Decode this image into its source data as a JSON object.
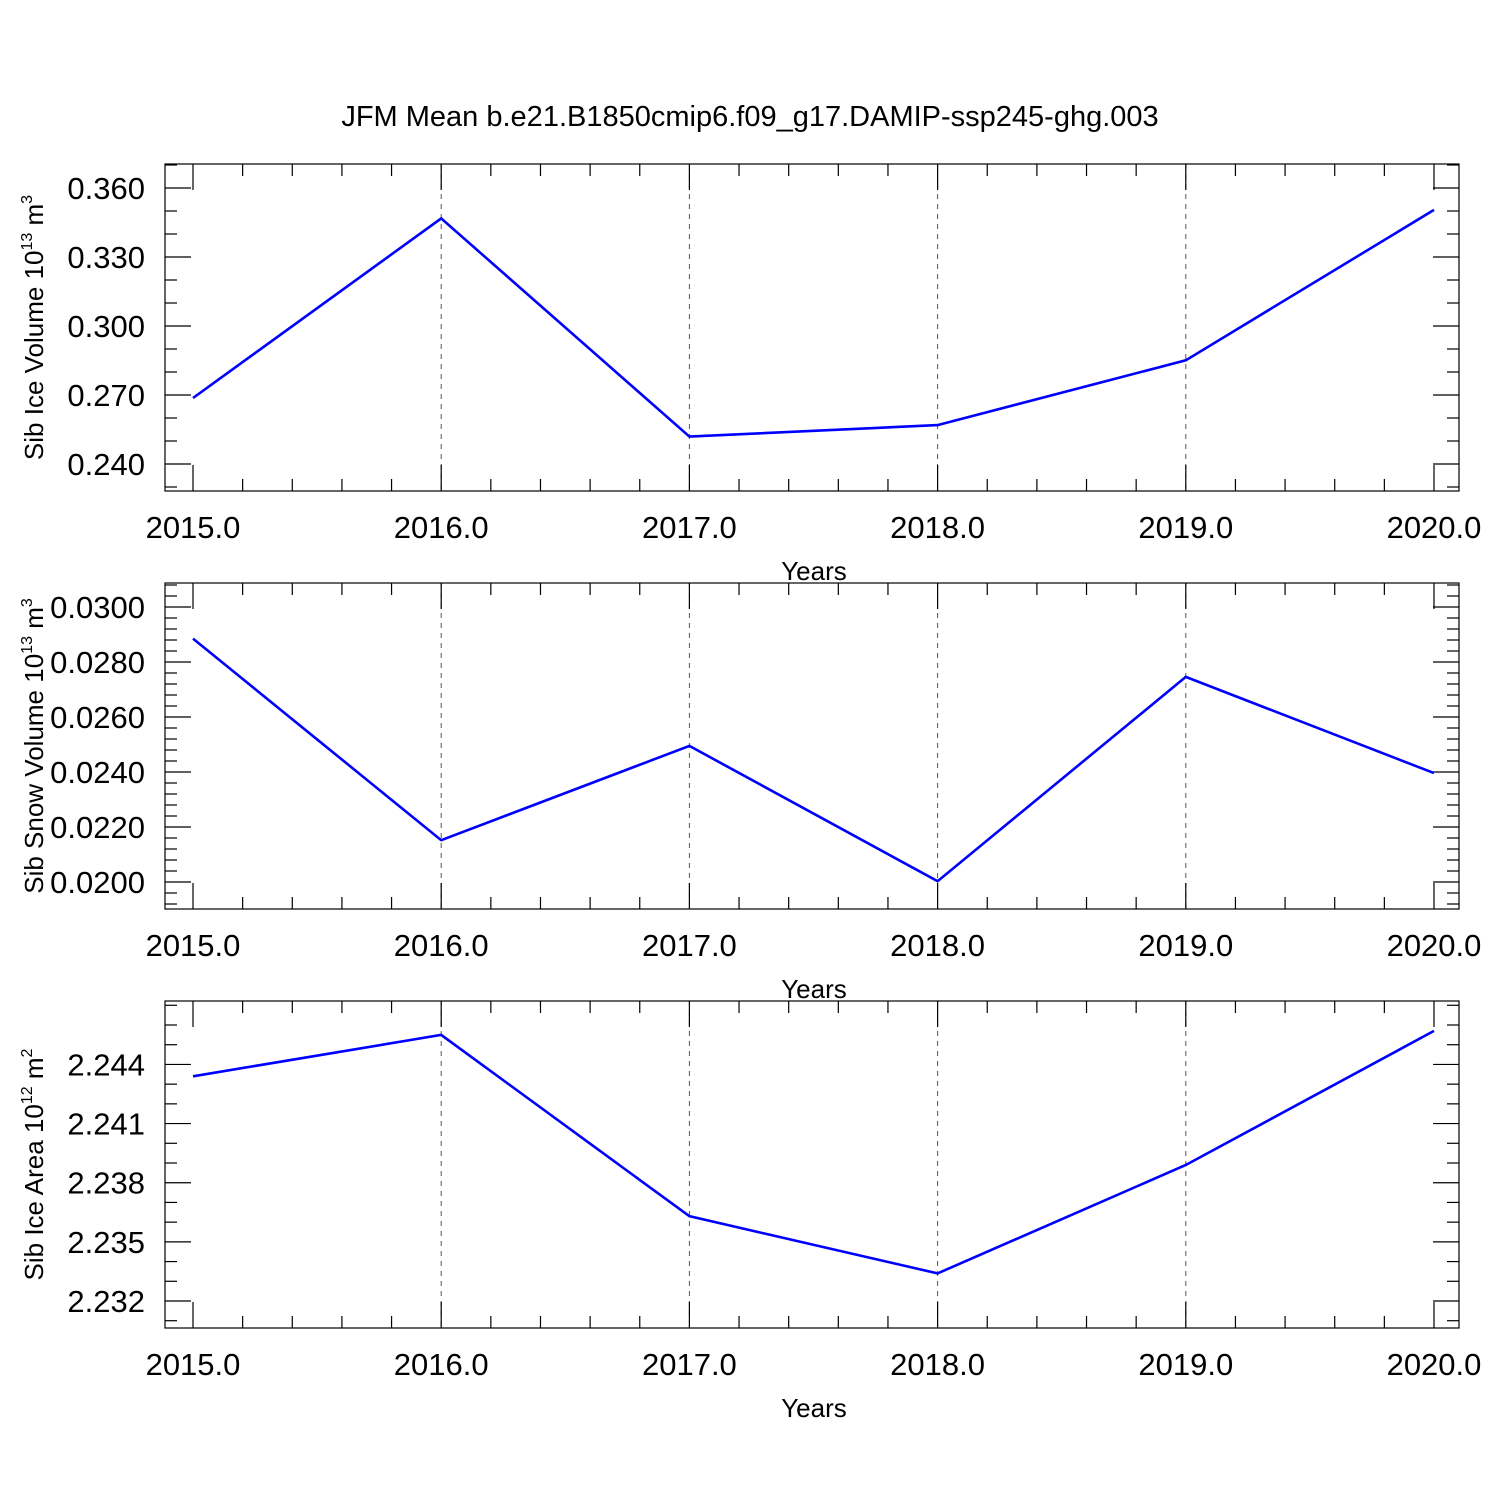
{
  "title": "JFM Mean b.e21.B1850cmip6.f09_g17.DAMIP-ssp245-ghg.003",
  "colors": {
    "line": "#0000ff",
    "axis": "#000000",
    "grid": "#555555"
  },
  "chart_data": [
    {
      "type": "line",
      "xlabel": "Years",
      "ylabel": {
        "text": "Sib Ice Volume 10",
        "exponent": "13",
        "unit": " m",
        "unit_exponent": "3"
      },
      "x": [
        2015,
        2016,
        2017,
        2018,
        2019,
        2020
      ],
      "x_tick_labels": [
        "2015.0",
        "2016.0",
        "2017.0",
        "2018.0",
        "2019.0",
        "2020.0"
      ],
      "xlim": [
        2015,
        2020
      ],
      "ylim": [
        0.24,
        0.36
      ],
      "y_ticks": [
        0.24,
        0.27,
        0.3,
        0.33,
        0.36
      ],
      "y_tick_labels": [
        "0.240",
        "0.270",
        "0.300",
        "0.330",
        "0.360"
      ],
      "y_minor_step": 0.01,
      "grid": "vertical dashed",
      "series": [
        {
          "values": [
            0.2687,
            0.3468,
            0.2519,
            0.2569,
            0.2851,
            0.3505
          ]
        }
      ]
    },
    {
      "type": "line",
      "xlabel": "Years",
      "ylabel": {
        "text": "Sib Snow Volume 10",
        "exponent": "13",
        "unit": " m",
        "unit_exponent": "3"
      },
      "x": [
        2015,
        2016,
        2017,
        2018,
        2019,
        2020
      ],
      "x_tick_labels": [
        "2015.0",
        "2016.0",
        "2017.0",
        "2018.0",
        "2019.0",
        "2020.0"
      ],
      "xlim": [
        2015,
        2020
      ],
      "ylim": [
        0.02,
        0.03
      ],
      "y_ticks": [
        0.02,
        0.022,
        0.024,
        0.026,
        0.028,
        0.03
      ],
      "y_tick_labels": [
        "0.0200",
        "0.0220",
        "0.0240",
        "0.0260",
        "0.0280",
        "0.0300"
      ],
      "y_minor_step": 0.0004,
      "grid": "vertical dashed",
      "series": [
        {
          "values": [
            0.02885,
            0.02152,
            0.02495,
            0.02003,
            0.02746,
            0.02396
          ]
        }
      ]
    },
    {
      "type": "line",
      "xlabel": "Years",
      "ylabel": {
        "text": "Sib Ice Area 10",
        "exponent": "12",
        "unit": " m",
        "unit_exponent": "2"
      },
      "x": [
        2015,
        2016,
        2017,
        2018,
        2019,
        2020
      ],
      "x_tick_labels": [
        "2015.0",
        "2016.0",
        "2017.0",
        "2018.0",
        "2019.0",
        "2020.0"
      ],
      "xlim": [
        2015,
        2020
      ],
      "ylim": [
        2.232,
        2.246
      ],
      "y_ticks": [
        2.232,
        2.235,
        2.238,
        2.241,
        2.244
      ],
      "y_tick_labels": [
        "2.232",
        "2.235",
        "2.238",
        "2.241",
        "2.244"
      ],
      "y_minor_step": 0.001,
      "grid": "vertical dashed",
      "series": [
        {
          "values": [
            2.2434,
            2.2455,
            2.2363,
            2.2334,
            2.2389,
            2.2457
          ]
        }
      ]
    }
  ]
}
